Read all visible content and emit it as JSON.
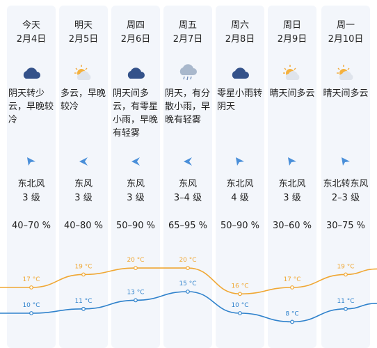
{
  "days": [
    {
      "day": "今天",
      "date": "2月4日",
      "icon": "cloud-icon",
      "desc": "阴天转少云，早晚较冷",
      "wind_dir": "ne",
      "wind": "东北风",
      "level": "3 级",
      "humidity": "40–70 %",
      "high": "17 °C",
      "low": "10 °C"
    },
    {
      "day": "明天",
      "date": "2月5日",
      "icon": "sun-cloud-icon",
      "desc": "多云，早晚较冷",
      "wind_dir": "e",
      "wind": "东风",
      "level": "3 级",
      "humidity": "40–80 %",
      "high": "19 °C",
      "low": "11 °C"
    },
    {
      "day": "周四",
      "date": "2月6日",
      "icon": "cloud-icon",
      "desc": "阴天间多云，有零星小雨，早晚有轻雾",
      "wind_dir": "e",
      "wind": "东风",
      "level": "3 级",
      "humidity": "50–90 %",
      "high": "20 °C",
      "low": "13 °C"
    },
    {
      "day": "周五",
      "date": "2月7日",
      "icon": "rain-icon",
      "desc": "阴天，有分散小雨，早晚有轻雾",
      "wind_dir": "e",
      "wind": "东风",
      "level": "3–4 级",
      "humidity": "65–95 %",
      "high": "20 °C",
      "low": "15 °C"
    },
    {
      "day": "周六",
      "date": "2月8日",
      "icon": "cloud-icon",
      "desc": "零星小雨转阴天",
      "wind_dir": "ne",
      "wind": "东北风",
      "level": "4 级",
      "humidity": "50–90 %",
      "high": "16 °C",
      "low": "10 °C"
    },
    {
      "day": "周日",
      "date": "2月9日",
      "icon": "sun-cloud-icon",
      "desc": "晴天间多云",
      "wind_dir": "ne",
      "wind": "东北风",
      "level": "3 级",
      "humidity": "30–60 %",
      "high": "17 °C",
      "low": "8 °C"
    },
    {
      "day": "周一",
      "date": "2月10日",
      "icon": "sun-cloud-icon",
      "desc": "晴天间多云",
      "wind_dir": "ne",
      "wind": "东北转东风",
      "level": "2–3 级",
      "humidity": "30–75 %",
      "high": "19 °C",
      "low": "11 °C"
    }
  ],
  "temps": {
    "high": [
      17,
      19,
      20,
      20,
      16,
      17,
      19
    ],
    "low": [
      10,
      11,
      13,
      15,
      10,
      8,
      11
    ]
  },
  "colors": {
    "high": "#f0a733",
    "low": "#2f82cc",
    "column_bg": "#f3f6fb",
    "arrow": "#4a8fd9"
  }
}
